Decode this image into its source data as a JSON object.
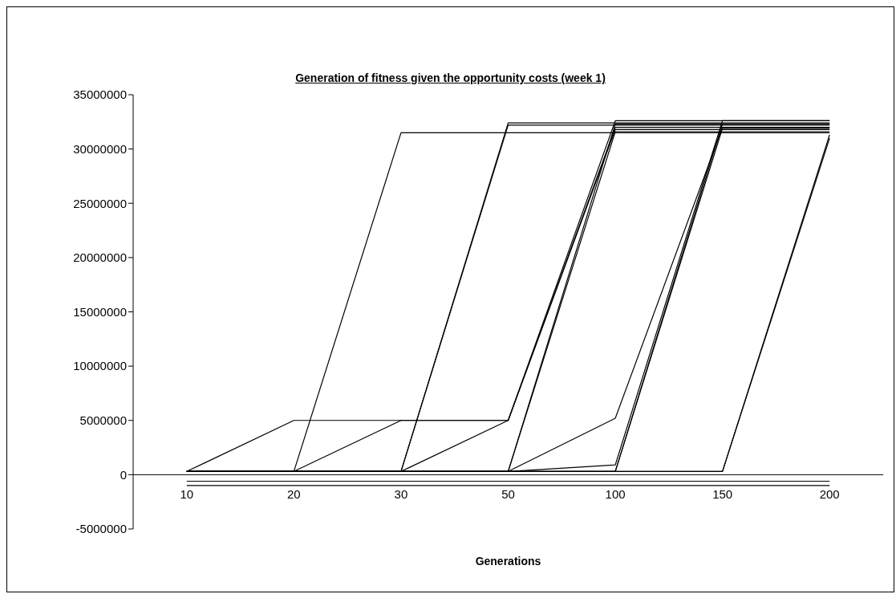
{
  "chart_data": {
    "type": "line",
    "title": "Generation of fitness given the opportunity costs (week 1)",
    "xlabel": "Generations",
    "categories": [
      "10",
      "20",
      "30",
      "50",
      "100",
      "150",
      "200"
    ],
    "ylim": [
      -5000000,
      35000000
    ],
    "yticks": [
      -5000000,
      0,
      5000000,
      10000000,
      15000000,
      20000000,
      25000000,
      30000000,
      35000000
    ],
    "grid": false,
    "legend": false,
    "marker": "none",
    "line_style": "solid",
    "series": [
      {
        "color": "#000000",
        "values": [
          300000,
          5000000,
          5000000,
          5000000,
          32600000,
          32600000,
          32600000
        ]
      },
      {
        "color": "#000000",
        "values": [
          300000,
          300000,
          31500000,
          31500000,
          31500000,
          31500000,
          31500000
        ]
      },
      {
        "color": "#000000",
        "values": [
          300000,
          300000,
          5000000,
          5000000,
          32000000,
          32000000,
          32000000
        ]
      },
      {
        "color": "#000000",
        "values": [
          300000,
          300000,
          300000,
          5000000,
          31800000,
          31800000,
          31800000
        ]
      },
      {
        "color": "#000000",
        "values": [
          300000,
          300000,
          300000,
          32400000,
          32400000,
          32400000,
          32400000
        ]
      },
      {
        "color": "#000000",
        "values": [
          300000,
          300000,
          300000,
          32200000,
          32200000,
          32200000,
          32200000
        ]
      },
      {
        "color": "#000000",
        "values": [
          300000,
          300000,
          300000,
          300000,
          31600000,
          31600000,
          31600000
        ]
      },
      {
        "color": "#000000",
        "values": [
          300000,
          300000,
          300000,
          300000,
          32300000,
          32300000,
          32300000
        ]
      },
      {
        "color": "#000000",
        "values": [
          300000,
          300000,
          300000,
          300000,
          5200000,
          32000000,
          32000000
        ]
      },
      {
        "color": "#000000",
        "values": [
          300000,
          300000,
          300000,
          300000,
          900000,
          32600000,
          32600000
        ]
      },
      {
        "color": "#000000",
        "values": [
          300000,
          300000,
          300000,
          300000,
          300000,
          32300000,
          32300000
        ]
      },
      {
        "color": "#000000",
        "values": [
          300000,
          300000,
          300000,
          300000,
          300000,
          31900000,
          31900000
        ]
      },
      {
        "color": "#000000",
        "values": [
          300000,
          300000,
          300000,
          300000,
          300000,
          300000,
          31000000
        ]
      },
      {
        "color": "#000000",
        "values": [
          300000,
          300000,
          300000,
          300000,
          300000,
          300000,
          31300000
        ]
      },
      {
        "color": "#000000",
        "values": [
          -600000,
          -600000,
          -600000,
          -600000,
          -600000,
          -600000,
          -600000
        ]
      },
      {
        "color": "#000000",
        "values": [
          -1000000,
          -1000000,
          -1000000,
          -1000000,
          -1000000,
          -1000000,
          -1000000
        ]
      }
    ]
  }
}
